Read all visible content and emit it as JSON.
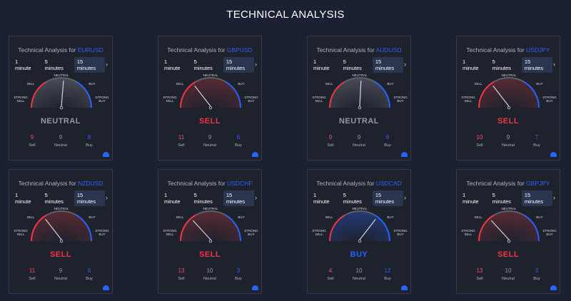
{
  "page_title": "TECHNICAL ANALYSIS",
  "title_prefix": "Technical Analysis for",
  "tabs": [
    "1 minute",
    "5 minutes",
    "15 minutes"
  ],
  "active_tab": 2,
  "gauge_labels": {
    "strong_sell": "STRONG SELL",
    "sell": "SELL",
    "neutral": "NEUTRAL",
    "buy": "BUY",
    "strong_buy": "STRONG BUY"
  },
  "count_labels": {
    "sell": "Sell",
    "neutral": "Neutral",
    "buy": "Buy"
  },
  "colors": {
    "sell": "#f23645",
    "neutral": "#9598a1",
    "buy": "#2962ff"
  },
  "cards": [
    {
      "symbol": "EURUSD",
      "signal": "NEUTRAL",
      "gauge_value": 0.05,
      "sell": "9",
      "neutral": "9",
      "buy": "8"
    },
    {
      "symbol": "GBPUSD",
      "signal": "SELL",
      "gauge_value": -0.4,
      "sell": "11",
      "neutral": "9",
      "buy": "6"
    },
    {
      "symbol": "AUDUSD",
      "signal": "NEUTRAL",
      "gauge_value": 0.03,
      "sell": "9",
      "neutral": "9",
      "buy": "8"
    },
    {
      "symbol": "USDJPY",
      "signal": "SELL",
      "gauge_value": -0.4,
      "sell": "10",
      "neutral": "9",
      "buy": "7"
    },
    {
      "symbol": "NZDUSD",
      "signal": "SELL",
      "gauge_value": -0.4,
      "sell": "11",
      "neutral": "9",
      "buy": "6"
    },
    {
      "symbol": "USDCHF",
      "signal": "SELL",
      "gauge_value": -0.45,
      "sell": "13",
      "neutral": "10",
      "buy": "3"
    },
    {
      "symbol": "USDCAD",
      "signal": "BUY",
      "gauge_value": 0.4,
      "sell": "4",
      "neutral": "10",
      "buy": "12"
    },
    {
      "symbol": "GBPJPY",
      "signal": "SELL",
      "gauge_value": -0.45,
      "sell": "13",
      "neutral": "10",
      "buy": "3"
    }
  ]
}
